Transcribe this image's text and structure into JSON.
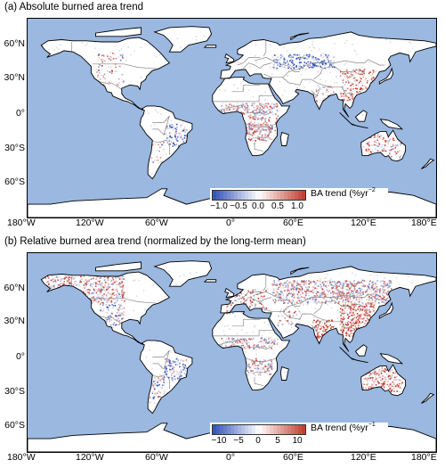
{
  "panels": [
    {
      "title": "(a) Absolute burned area trend",
      "colorbar": {
        "label": "BA trend (%yr",
        "exponent": "−2",
        "ticks": [
          "−1.0",
          "−0.5",
          "0.0",
          "0.5",
          "1.0"
        ]
      }
    },
    {
      "title": "(b) Relative burned area trend (normalized by the long-term mean)",
      "colorbar": {
        "label": "BA trend (%yr",
        "exponent": "−1",
        "ticks": [
          "−10",
          "−5",
          "0",
          "5",
          "10"
        ]
      }
    }
  ],
  "lat_labels": [
    "60°N",
    "30°N",
    "0°",
    "30°S",
    "60°S"
  ],
  "lon_labels": [
    "180°W",
    "120°W",
    "60°W",
    "0°",
    "60°E",
    "120°E",
    "180°E"
  ],
  "colors": {
    "ocean": "#9ab8e0",
    "land": "#ffffff",
    "positive": "#c0392b",
    "negative": "#2e4fb8"
  }
}
